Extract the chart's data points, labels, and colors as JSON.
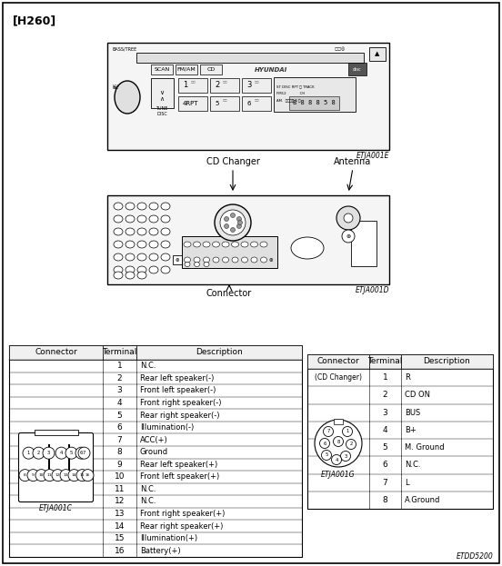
{
  "title": "[H260]",
  "bg_color": "#ffffff",
  "page_code": "ETDD5200",
  "radio_label": "ETJA001E",
  "back_label": "ETJA001D",
  "connector_label": "ETJA001C",
  "cd_changer_label": "ETJA001G",
  "cd_changer_title": "CD Changer",
  "antenna_title": "Antenna",
  "connector_text": "Connector",
  "left_table": {
    "headers": [
      "Connector",
      "Terminal",
      "Description"
    ],
    "terminals": [
      1,
      2,
      3,
      4,
      5,
      6,
      7,
      8,
      9,
      10,
      11,
      12,
      13,
      14,
      15,
      16
    ],
    "descriptions": [
      "N.C.",
      "Rear left speaker(-)",
      "Front left speaker(-)",
      "Front right speaker(-)",
      "Rear right speaker(-)",
      "Illumination(-)",
      "ACC(+)",
      "Ground",
      "Rear left speaker(+)",
      "Front left speaker(+)",
      "N.C.",
      "N.C.",
      "Front right speaker(+)",
      "Rear right speaker(+)",
      "Illumination(+)",
      "Battery(+)"
    ]
  },
  "right_table": {
    "headers": [
      "Connector",
      "Terminal",
      "Description"
    ],
    "connector_name": "(CD Changer)",
    "terminals": [
      1,
      2,
      3,
      4,
      5,
      6,
      7,
      8
    ],
    "descriptions": [
      "R",
      "CD ON",
      "BUS",
      "B+",
      "M. Ground",
      "N.C.",
      "L",
      "A.Ground"
    ]
  }
}
